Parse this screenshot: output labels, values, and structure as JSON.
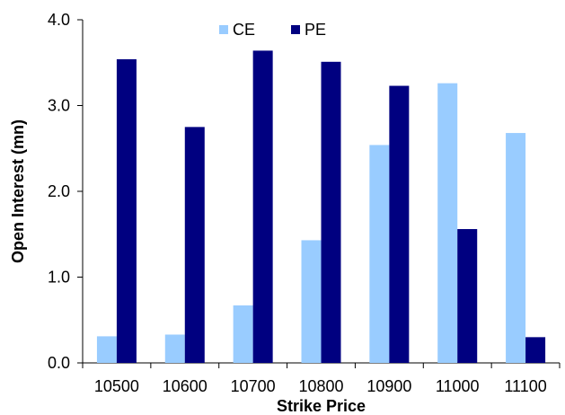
{
  "chart_data": {
    "type": "bar",
    "title": "",
    "xlabel": "Strike Price",
    "ylabel": "Open Interest (mn)",
    "categories": [
      "10500",
      "10600",
      "10700",
      "10800",
      "10900",
      "11000",
      "11100"
    ],
    "series": [
      {
        "name": "CE",
        "color": "#99ccff",
        "values": [
          0.31,
          0.33,
          0.67,
          1.43,
          2.54,
          3.26,
          2.68
        ]
      },
      {
        "name": "PE",
        "color": "#000080",
        "values": [
          3.54,
          2.75,
          3.64,
          3.51,
          3.23,
          1.56,
          0.3
        ]
      }
    ],
    "ylim": [
      0,
      4
    ],
    "yticks": [
      "0.0",
      "1.0",
      "2.0",
      "3.0",
      "4.0"
    ],
    "ytick_values": [
      0,
      1,
      2,
      3,
      4
    ],
    "grid": false,
    "legend_position": "top"
  }
}
